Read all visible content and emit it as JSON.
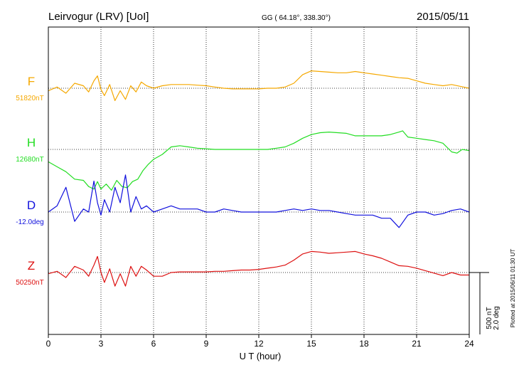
{
  "header": {
    "station": "Leirvogur (LRV)  [UoI]",
    "coords": "GG ( 64.18°, 338.30°)",
    "date": "2015/05/11"
  },
  "footer": {
    "scale_nt": "500 nT",
    "scale_deg": "2.0 deg",
    "plotted": "Plotted at 2015/06/11 01:30 UT"
  },
  "colors": {
    "F": "#f5a800",
    "H": "#22dd22",
    "D": "#1010dd",
    "Z": "#dd1010",
    "axis": "#000000"
  },
  "chart_data": {
    "type": "line",
    "xlabel": "U T (hour)",
    "xlim": [
      0,
      24
    ],
    "xticks": [
      0,
      3,
      6,
      9,
      12,
      15,
      18,
      21,
      24
    ],
    "units": {
      "F": "nT",
      "H": "nT",
      "D": "deg",
      "Z": "nT"
    },
    "scale": {
      "nT_per_bar": 500,
      "deg_per_bar": 2.0
    },
    "series": [
      {
        "name": "F",
        "baseline_label": "51820nT",
        "baseline": 51820,
        "x": [
          0,
          0.5,
          1,
          1.5,
          2,
          2.3,
          2.6,
          2.8,
          3,
          3.2,
          3.5,
          3.8,
          4.1,
          4.4,
          4.7,
          5,
          5.3,
          5.6,
          6,
          6.5,
          7,
          7.5,
          8,
          8.5,
          9,
          9.5,
          10,
          10.5,
          11,
          11.5,
          12,
          12.5,
          13,
          13.5,
          14,
          14.5,
          15,
          15.5,
          16,
          16.5,
          17,
          17.5,
          18,
          18.5,
          19,
          19.5,
          20,
          20.5,
          21,
          21.5,
          22,
          22.5,
          23,
          23.5,
          24
        ],
        "values": [
          51800,
          51830,
          51780,
          51860,
          51840,
          51790,
          51880,
          51920,
          51810,
          51760,
          51850,
          51720,
          51800,
          51730,
          51840,
          51790,
          51870,
          51840,
          51820,
          51840,
          51850,
          51850,
          51850,
          51845,
          51840,
          51830,
          51820,
          51815,
          51815,
          51815,
          51815,
          51820,
          51820,
          51830,
          51860,
          51930,
          51960,
          51955,
          51950,
          51945,
          51945,
          51955,
          51945,
          51935,
          51925,
          51915,
          51905,
          51900,
          51880,
          51860,
          51850,
          51840,
          51850,
          51835,
          51820
        ]
      },
      {
        "name": "H",
        "baseline_label": "12680nT",
        "baseline": 12680,
        "x": [
          0,
          0.5,
          1,
          1.5,
          2,
          2.3,
          2.6,
          2.8,
          3,
          3.3,
          3.6,
          3.9,
          4.2,
          4.5,
          4.8,
          5.1,
          5.4,
          5.7,
          6,
          6.5,
          7,
          7.5,
          8,
          8.5,
          9,
          9.5,
          10,
          10.5,
          11,
          11.5,
          12,
          12.5,
          13,
          13.5,
          14,
          14.5,
          15,
          15.5,
          16,
          16.5,
          17,
          17.5,
          18,
          18.5,
          19,
          19.5,
          20,
          20.2,
          20.5,
          21,
          21.5,
          22,
          22.5,
          23,
          23.3,
          23.6,
          24
        ],
        "values": [
          12580,
          12540,
          12500,
          12440,
          12430,
          12380,
          12360,
          12420,
          12360,
          12400,
          12350,
          12430,
          12380,
          12370,
          12420,
          12440,
          12510,
          12560,
          12600,
          12640,
          12700,
          12710,
          12700,
          12690,
          12685,
          12680,
          12680,
          12680,
          12680,
          12680,
          12680,
          12680,
          12690,
          12700,
          12730,
          12770,
          12800,
          12815,
          12820,
          12815,
          12810,
          12790,
          12790,
          12790,
          12790,
          12800,
          12820,
          12830,
          12780,
          12770,
          12760,
          12750,
          12730,
          12660,
          12650,
          12680,
          12670
        ]
      },
      {
        "name": "D",
        "baseline_label": "-12.0deg",
        "baseline": -12.0,
        "x": [
          0,
          0.5,
          1,
          1.5,
          2,
          2.3,
          2.6,
          2.8,
          3,
          3.2,
          3.5,
          3.8,
          4.1,
          4.4,
          4.7,
          5,
          5.3,
          5.6,
          6,
          6.5,
          7,
          7.5,
          8,
          8.5,
          9,
          9.5,
          10,
          10.5,
          11,
          11.5,
          12,
          12.5,
          13,
          13.5,
          14,
          14.5,
          15,
          15.5,
          16,
          16.5,
          17,
          17.5,
          18,
          18.5,
          19,
          19.5,
          20,
          20.5,
          21,
          21.5,
          22,
          22.5,
          23,
          23.5,
          24
        ],
        "values": [
          -12.0,
          -11.8,
          -11.2,
          -12.3,
          -11.9,
          -12.0,
          -11.0,
          -11.7,
          -12.1,
          -11.6,
          -12.0,
          -11.2,
          -11.7,
          -10.8,
          -12.0,
          -11.5,
          -11.9,
          -11.8,
          -12.0,
          -11.9,
          -11.8,
          -11.9,
          -11.9,
          -11.9,
          -12.0,
          -12.0,
          -11.9,
          -11.95,
          -12.0,
          -12.0,
          -12.0,
          -12.0,
          -12.0,
          -11.95,
          -11.9,
          -11.95,
          -11.9,
          -11.95,
          -11.95,
          -12.0,
          -12.05,
          -12.1,
          -12.1,
          -12.1,
          -12.2,
          -12.2,
          -12.5,
          -12.1,
          -12.0,
          -12.0,
          -12.1,
          -12.05,
          -11.95,
          -11.9,
          -12.0
        ]
      },
      {
        "name": "Z",
        "baseline_label": "50250nT",
        "baseline": 50250,
        "x": [
          0,
          0.5,
          1,
          1.5,
          2,
          2.3,
          2.6,
          2.8,
          3,
          3.2,
          3.5,
          3.8,
          4.1,
          4.4,
          4.7,
          5,
          5.3,
          5.6,
          6,
          6.5,
          7,
          7.5,
          8,
          8.5,
          9,
          9.5,
          10,
          10.5,
          11,
          11.5,
          12,
          12.5,
          13,
          13.5,
          14,
          14.5,
          15,
          15.5,
          16,
          16.5,
          17,
          17.5,
          18,
          18.5,
          19,
          19.5,
          20,
          20.5,
          21,
          21.5,
          22,
          22.5,
          23,
          23.5,
          24
        ],
        "values": [
          50240,
          50260,
          50210,
          50300,
          50270,
          50220,
          50310,
          50380,
          50250,
          50170,
          50280,
          50140,
          50240,
          50140,
          50300,
          50220,
          50300,
          50270,
          50220,
          50220,
          50250,
          50255,
          50255,
          50255,
          50255,
          50260,
          50260,
          50265,
          50270,
          50270,
          50275,
          50285,
          50295,
          50310,
          50350,
          50400,
          50420,
          50415,
          50405,
          50410,
          50415,
          50420,
          50400,
          50385,
          50365,
          50335,
          50305,
          50300,
          50285,
          50265,
          50245,
          50225,
          50250,
          50230,
          50230
        ]
      }
    ]
  }
}
